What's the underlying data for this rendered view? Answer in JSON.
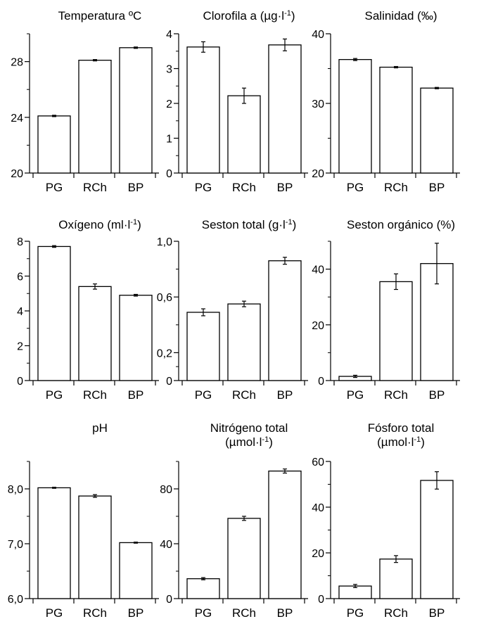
{
  "chart_data": [
    {
      "type": "bar",
      "title": "Temperatura ºC",
      "categories": [
        "PG",
        "RCh",
        "BP"
      ],
      "values": [
        24.1,
        28.1,
        29.0
      ],
      "errors": [
        0.05,
        0.05,
        0.05
      ],
      "ylim": [
        20,
        30
      ],
      "yticks": [
        20,
        24,
        28
      ],
      "yticklabels": [
        "20",
        "24",
        "28"
      ],
      "ylabel": "",
      "xlabel": "",
      "grid": false
    },
    {
      "type": "bar",
      "title": "Clorofila a (µg·l-1)",
      "categories": [
        "PG",
        "RCh",
        "BP"
      ],
      "values": [
        3.62,
        2.22,
        3.68
      ],
      "errors": [
        0.15,
        0.22,
        0.17
      ],
      "ylim": [
        0,
        4
      ],
      "yticks": [
        0,
        1,
        2,
        3,
        4
      ],
      "yticklabels": [
        "0",
        "1",
        "2",
        "3",
        "4"
      ],
      "ylabel": "",
      "xlabel": "",
      "grid": false
    },
    {
      "type": "bar",
      "title": "Salinidad (‰)",
      "categories": [
        "PG",
        "RCh",
        "BP"
      ],
      "values": [
        36.3,
        35.2,
        32.2
      ],
      "errors": [
        0.15,
        0.1,
        0.1
      ],
      "ylim": [
        20,
        40
      ],
      "yticks": [
        20,
        30,
        40
      ],
      "yticklabels": [
        "20",
        "30",
        "40"
      ],
      "ylabel": "",
      "xlabel": "",
      "grid": false
    },
    {
      "type": "bar",
      "title": "Oxígeno (ml·l-1)",
      "categories": [
        "PG",
        "RCh",
        "BP"
      ],
      "values": [
        7.7,
        5.4,
        4.9
      ],
      "errors": [
        0.05,
        0.15,
        0.05
      ],
      "ylim": [
        0,
        8
      ],
      "yticks": [
        0,
        2,
        4,
        6,
        8
      ],
      "yticklabels": [
        "0",
        "2",
        "4",
        "6",
        "8"
      ],
      "ylabel": "",
      "xlabel": "",
      "grid": false
    },
    {
      "type": "bar",
      "title": "Seston total (g·l-1)",
      "categories": [
        "PG",
        "RCh",
        "BP"
      ],
      "values": [
        0.49,
        0.55,
        0.86
      ],
      "errors": [
        0.025,
        0.02,
        0.025
      ],
      "ylim": [
        0,
        1.0
      ],
      "yticks": [
        0,
        0.2,
        0.6,
        1.0
      ],
      "yticklabels": [
        "0",
        "0,2",
        "0,6",
        "1,0"
      ],
      "ylabel": "",
      "xlabel": "",
      "grid": false
    },
    {
      "type": "bar",
      "title": "Seston orgánico (%)",
      "categories": [
        "PG",
        "RCh",
        "BP"
      ],
      "values": [
        1.5,
        35.5,
        42.0
      ],
      "errors": [
        0.4,
        2.8,
        7.3
      ],
      "ylim": [
        0,
        50
      ],
      "yticks": [
        0,
        20,
        40
      ],
      "yticklabels": [
        "0",
        "20",
        "40"
      ],
      "ylabel": "",
      "xlabel": "",
      "grid": false
    },
    {
      "type": "bar",
      "title": "pH",
      "categories": [
        "PG",
        "RCh",
        "BP"
      ],
      "values": [
        8.02,
        7.87,
        7.02
      ],
      "errors": [
        0.01,
        0.025,
        0.01
      ],
      "ylim": [
        6.0,
        8.5
      ],
      "yticks": [
        6.0,
        7.0,
        8.0
      ],
      "yticklabels": [
        "6,0",
        "7,0",
        "8,0"
      ],
      "ylabel": "",
      "xlabel": "",
      "grid": false
    },
    {
      "type": "bar",
      "title": "Nitrógeno total",
      "subtitle": "(µmol·l-1)",
      "categories": [
        "PG",
        "RCh",
        "BP"
      ],
      "values": [
        14.5,
        58.5,
        93.0
      ],
      "errors": [
        0.8,
        1.5,
        1.5
      ],
      "ylim": [
        0,
        100
      ],
      "yticks": [
        0,
        40,
        80
      ],
      "yticklabels": [
        "0",
        "40",
        "80"
      ],
      "ylabel": "",
      "xlabel": "",
      "grid": false
    },
    {
      "type": "bar",
      "title": "Fósforo total",
      "subtitle": "(µmol·l-1)",
      "categories": [
        "PG",
        "RCh",
        "BP"
      ],
      "values": [
        5.5,
        17.3,
        51.7
      ],
      "errors": [
        0.7,
        1.5,
        3.8
      ],
      "ylim": [
        0,
        60
      ],
      "yticks": [
        0,
        20,
        40,
        60
      ],
      "yticklabels": [
        "0",
        "20",
        "40",
        "60"
      ],
      "ylabel": "",
      "xlabel": "",
      "grid": false
    }
  ]
}
